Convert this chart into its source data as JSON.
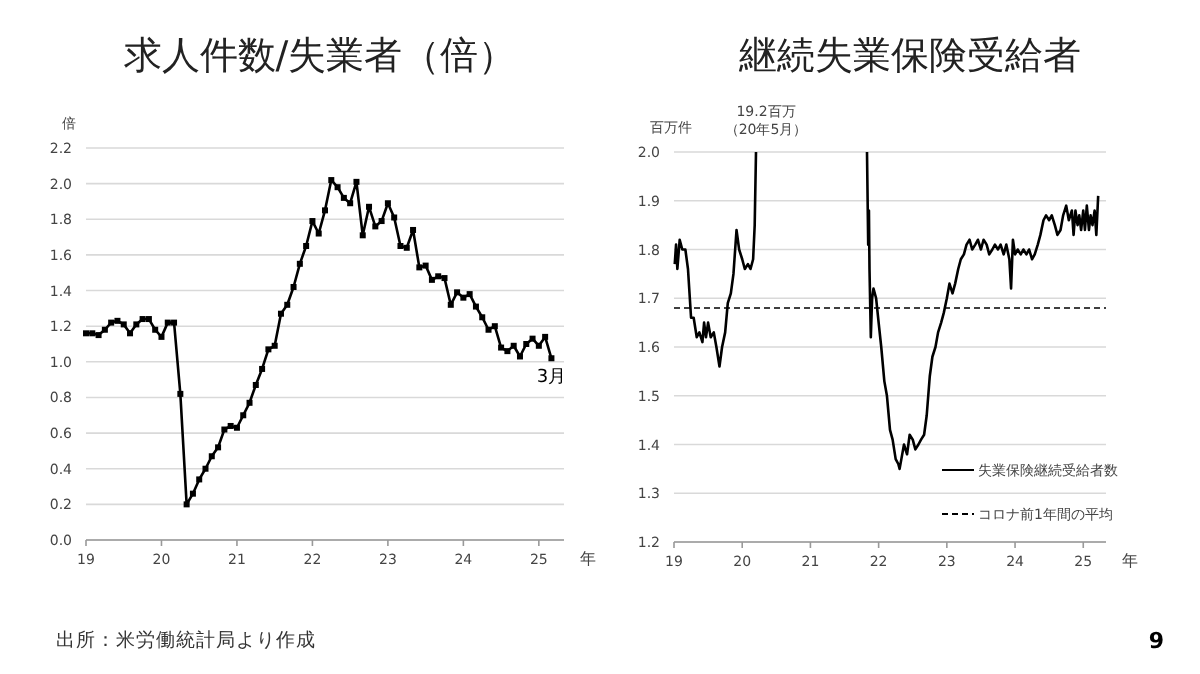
{
  "chart_data": [
    {
      "type": "line",
      "title": "求人件数/失業者（倍）",
      "ylabel": "倍",
      "xlabel": "年",
      "marker": "square",
      "line_style": "solid",
      "grid": "y",
      "legend": false,
      "xlim": [
        "2019-01",
        "2025-05"
      ],
      "ylim": [
        0,
        2.2
      ],
      "xticks": [
        {
          "value": "2019-01",
          "label": "19"
        },
        {
          "value": "2020-01",
          "label": "20"
        },
        {
          "value": "2021-01",
          "label": "21"
        },
        {
          "value": "2022-01",
          "label": "22"
        },
        {
          "value": "2023-01",
          "label": "23"
        },
        {
          "value": "2024-01",
          "label": "24"
        },
        {
          "value": "2025-01",
          "label": "25"
        }
      ],
      "yticks": [
        {
          "value": 0,
          "label": "0.0"
        },
        {
          "value": 0.2,
          "label": "0.2"
        },
        {
          "value": 0.4,
          "label": "0.4"
        },
        {
          "value": 0.6,
          "label": "0.6"
        },
        {
          "value": 0.8,
          "label": "0.8"
        },
        {
          "value": 1,
          "label": "1.0"
        },
        {
          "value": 1.2,
          "label": "1.2"
        },
        {
          "value": 1.4,
          "label": "1.4"
        },
        {
          "value": 1.6,
          "label": "1.6"
        },
        {
          "value": 1.8,
          "label": "1.8"
        },
        {
          "value": 2,
          "label": "2.0"
        },
        {
          "value": 2.2,
          "label": "2.2"
        }
      ],
      "x": [
        "2019-01",
        "2019-02",
        "2019-03",
        "2019-04",
        "2019-05",
        "2019-06",
        "2019-07",
        "2019-08",
        "2019-09",
        "2019-10",
        "2019-11",
        "2019-12",
        "2020-01",
        "2020-02",
        "2020-03",
        "2020-04",
        "2020-05",
        "2020-06",
        "2020-07",
        "2020-08",
        "2020-09",
        "2020-10",
        "2020-11",
        "2020-12",
        "2021-01",
        "2021-02",
        "2021-03",
        "2021-04",
        "2021-05",
        "2021-06",
        "2021-07",
        "2021-08",
        "2021-09",
        "2021-10",
        "2021-11",
        "2021-12",
        "2022-01",
        "2022-02",
        "2022-03",
        "2022-04",
        "2022-05",
        "2022-06",
        "2022-07",
        "2022-08",
        "2022-09",
        "2022-10",
        "2022-11",
        "2022-12",
        "2023-01",
        "2023-02",
        "2023-03",
        "2023-04",
        "2023-05",
        "2023-06",
        "2023-07",
        "2023-08",
        "2023-09",
        "2023-10",
        "2023-11",
        "2023-12",
        "2024-01",
        "2024-02",
        "2024-03",
        "2024-04",
        "2024-05",
        "2024-06",
        "2024-07",
        "2024-08",
        "2024-09",
        "2024-10",
        "2024-11",
        "2024-12",
        "2025-01",
        "2025-02",
        "2025-03"
      ],
      "series": [
        {
          "color": "#000000",
          "values": [
            1.16,
            1.16,
            1.15,
            1.18,
            1.22,
            1.23,
            1.21,
            1.16,
            1.21,
            1.24,
            1.24,
            1.18,
            1.14,
            1.22,
            1.22,
            0.82,
            0.2,
            0.26,
            0.34,
            0.4,
            0.47,
            0.52,
            0.62,
            0.64,
            0.63,
            0.7,
            0.77,
            0.87,
            0.96,
            1.07,
            1.09,
            1.27,
            1.32,
            1.42,
            1.55,
            1.65,
            1.79,
            1.72,
            1.85,
            2.02,
            1.98,
            1.92,
            1.89,
            2.01,
            1.71,
            1.87,
            1.76,
            1.79,
            1.89,
            1.81,
            1.65,
            1.64,
            1.74,
            1.53,
            1.54,
            1.46,
            1.48,
            1.47,
            1.32,
            1.39,
            1.36,
            1.38,
            1.31,
            1.25,
            1.18,
            1.2,
            1.08,
            1.06,
            1.09,
            1.03,
            1.1,
            1.13,
            1.09,
            1.14,
            1.02
          ]
        }
      ],
      "annotations": [
        {
          "text": "3月",
          "x": "2025-03",
          "y": 1.02
        },
        "出所：米労働統計局より作成"
      ]
    },
    {
      "type": "line",
      "title": "継続失業保険受給者",
      "ylabel": "百万件",
      "xlabel": "年",
      "marker": "none",
      "line_style": "solid",
      "grid": "y",
      "legend": "bottom right",
      "xlim": [
        "2019-01",
        "2025-05"
      ],
      "ylim": [
        1.2,
        2.0
      ],
      "xticks": [
        {
          "value": "2019-01",
          "label": "19"
        },
        {
          "value": "2020-01",
          "label": "20"
        },
        {
          "value": "2021-01",
          "label": "21"
        },
        {
          "value": "2022-01",
          "label": "22"
        },
        {
          "value": "2023-01",
          "label": "23"
        },
        {
          "value": "2024-01",
          "label": "24"
        },
        {
          "value": "2025-01",
          "label": "25"
        }
      ],
      "yticks": [
        1.2,
        1.3,
        1.4,
        1.5,
        1.6,
        1.7,
        1.8,
        1.9,
        {
          "value": 2,
          "label": "2.0"
        }
      ],
      "ref_lines": [
        {
          "axis": "y",
          "value": 1.68,
          "label": "コロナ前1年間の平均",
          "line_style": "dashed",
          "color": "#000000"
        }
      ],
      "x": [
        "2019-01-05",
        "2019-01-12",
        "2019-01-19",
        "2019-02-01",
        "2019-02-15",
        "2019-03-01",
        "2019-03-15",
        "2019-04-01",
        "2019-04-15",
        "2019-05-01",
        "2019-05-15",
        "2019-06-01",
        "2019-06-10",
        "2019-06-20",
        "2019-07-01",
        "2019-07-15",
        "2019-08-01",
        "2019-08-15",
        "2019-09-01",
        "2019-09-15",
        "2019-10-01",
        "2019-10-15",
        "2019-11-01",
        "2019-11-15",
        "2019-12-01",
        "2019-12-15",
        "2020-01-01",
        "2020-01-15",
        "2020-02-01",
        "2020-02-15",
        "2020-02-29",
        "2020-03-07",
        "2020-03-14",
        "2020-05-09",
        "2021-10-30",
        "2021-11-06",
        "2021-11-10",
        "2021-11-13",
        "2021-11-20",
        "2021-11-27",
        "2021-12-04",
        "2021-12-18",
        "2022-01-01",
        "2022-01-15",
        "2022-02-01",
        "2022-02-15",
        "2022-03-01",
        "2022-03-15",
        "2022-04-01",
        "2022-04-15",
        "2022-04-22",
        "2022-05-01",
        "2022-05-15",
        "2022-06-01",
        "2022-06-15",
        "2022-07-01",
        "2022-07-15",
        "2022-08-01",
        "2022-08-15",
        "2022-09-01",
        "2022-09-15",
        "2022-10-01",
        "2022-10-15",
        "2022-11-01",
        "2022-11-15",
        "2022-12-01",
        "2022-12-15",
        "2023-01-01",
        "2023-01-15",
        "2023-02-01",
        "2023-02-15",
        "2023-03-01",
        "2023-03-15",
        "2023-04-01",
        "2023-04-15",
        "2023-05-01",
        "2023-05-15",
        "2023-06-01",
        "2023-06-15",
        "2023-07-01",
        "2023-07-15",
        "2023-08-01",
        "2023-08-15",
        "2023-09-01",
        "2023-09-15",
        "2023-10-01",
        "2023-10-15",
        "2023-11-01",
        "2023-11-15",
        "2023-12-01",
        "2023-12-10",
        "2023-12-20",
        "2024-01-01",
        "2024-01-15",
        "2024-02-01",
        "2024-02-15",
        "2024-03-01",
        "2024-03-15",
        "2024-04-01",
        "2024-04-15",
        "2024-05-01",
        "2024-05-15",
        "2024-06-01",
        "2024-06-15",
        "2024-07-01",
        "2024-07-15",
        "2024-08-01",
        "2024-08-15",
        "2024-09-01",
        "2024-09-15",
        "2024-10-01",
        "2024-10-15",
        "2024-11-01",
        "2024-11-10",
        "2024-11-20",
        "2024-12-01",
        "2024-12-10",
        "2024-12-20",
        "2025-01-01",
        "2025-01-10",
        "2025-01-20",
        "2025-02-01",
        "2025-02-10",
        "2025-02-20",
        "2025-03-01",
        "2025-03-10",
        "2025-03-20"
      ],
      "series": [
        {
          "name": "失業保険継続受給者数",
          "color": "#000000",
          "values": [
            1.77,
            1.81,
            1.76,
            1.82,
            1.8,
            1.8,
            1.76,
            1.66,
            1.66,
            1.62,
            1.63,
            1.61,
            1.65,
            1.62,
            1.65,
            1.62,
            1.63,
            1.6,
            1.56,
            1.6,
            1.63,
            1.69,
            1.71,
            1.75,
            1.84,
            1.8,
            1.78,
            1.76,
            1.77,
            1.76,
            1.78,
            1.85,
            2.0,
            null,
            2.0,
            1.81,
            1.88,
            1.76,
            1.62,
            1.7,
            1.72,
            1.7,
            1.65,
            1.6,
            1.53,
            1.5,
            1.43,
            1.41,
            1.37,
            1.36,
            1.35,
            1.37,
            1.4,
            1.38,
            1.42,
            1.41,
            1.39,
            1.4,
            1.41,
            1.42,
            1.46,
            1.54,
            1.58,
            1.6,
            1.63,
            1.65,
            1.67,
            1.7,
            1.73,
            1.71,
            1.73,
            1.76,
            1.78,
            1.79,
            1.81,
            1.82,
            1.8,
            1.81,
            1.82,
            1.8,
            1.82,
            1.81,
            1.79,
            1.8,
            1.81,
            1.8,
            1.81,
            1.79,
            1.81,
            1.78,
            1.72,
            1.82,
            1.79,
            1.8,
            1.79,
            1.8,
            1.79,
            1.8,
            1.78,
            1.79,
            1.81,
            1.83,
            1.86,
            1.87,
            1.86,
            1.87,
            1.85,
            1.83,
            1.84,
            1.87,
            1.89,
            1.86,
            1.88,
            1.83,
            1.88,
            1.85,
            1.87,
            1.84,
            1.88,
            1.84,
            1.89,
            1.84,
            1.87,
            1.85,
            1.88,
            1.83,
            1.91
          ]
        }
      ],
      "annotations": [
        "19.2百万",
        "（20年5月）",
        "9"
      ]
    }
  ]
}
